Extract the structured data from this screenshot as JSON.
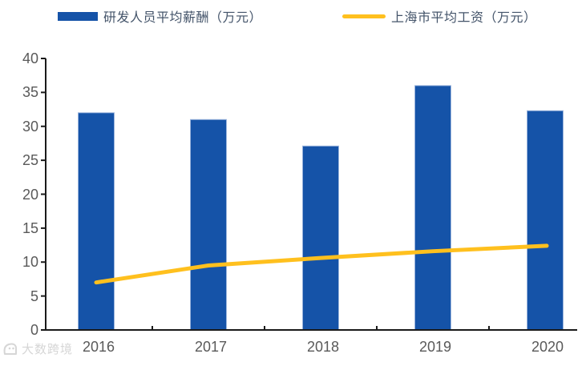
{
  "legend": {
    "bar_label": "研发人员平均薪酬（万元）",
    "line_label": "上海市平均工资（万元）"
  },
  "chart_data": {
    "type": "bar+line",
    "categories": [
      "2016",
      "2017",
      "2018",
      "2019",
      "2020"
    ],
    "series": [
      {
        "name": "研发人员平均薪酬（万元）",
        "type": "bar",
        "color": "#1553A8",
        "edge_color": "#9ab4dc",
        "values": [
          32.0,
          31.0,
          27.1,
          36.0,
          32.3
        ]
      },
      {
        "name": "上海市平均工资（万元）",
        "type": "line",
        "color": "#FFC01E",
        "values": [
          7.0,
          9.5,
          10.6,
          11.6,
          12.4
        ]
      }
    ],
    "title": "",
    "xlabel": "",
    "ylabel": "",
    "ylim": [
      0,
      40
    ],
    "yticks": [
      0,
      5,
      10,
      15,
      20,
      25,
      30,
      35,
      40
    ],
    "grid": false,
    "legend_position": "top",
    "axis_color": "#1a1a1a",
    "tick_label_color": "#595959"
  },
  "watermark": {
    "text": "大数跨境"
  }
}
